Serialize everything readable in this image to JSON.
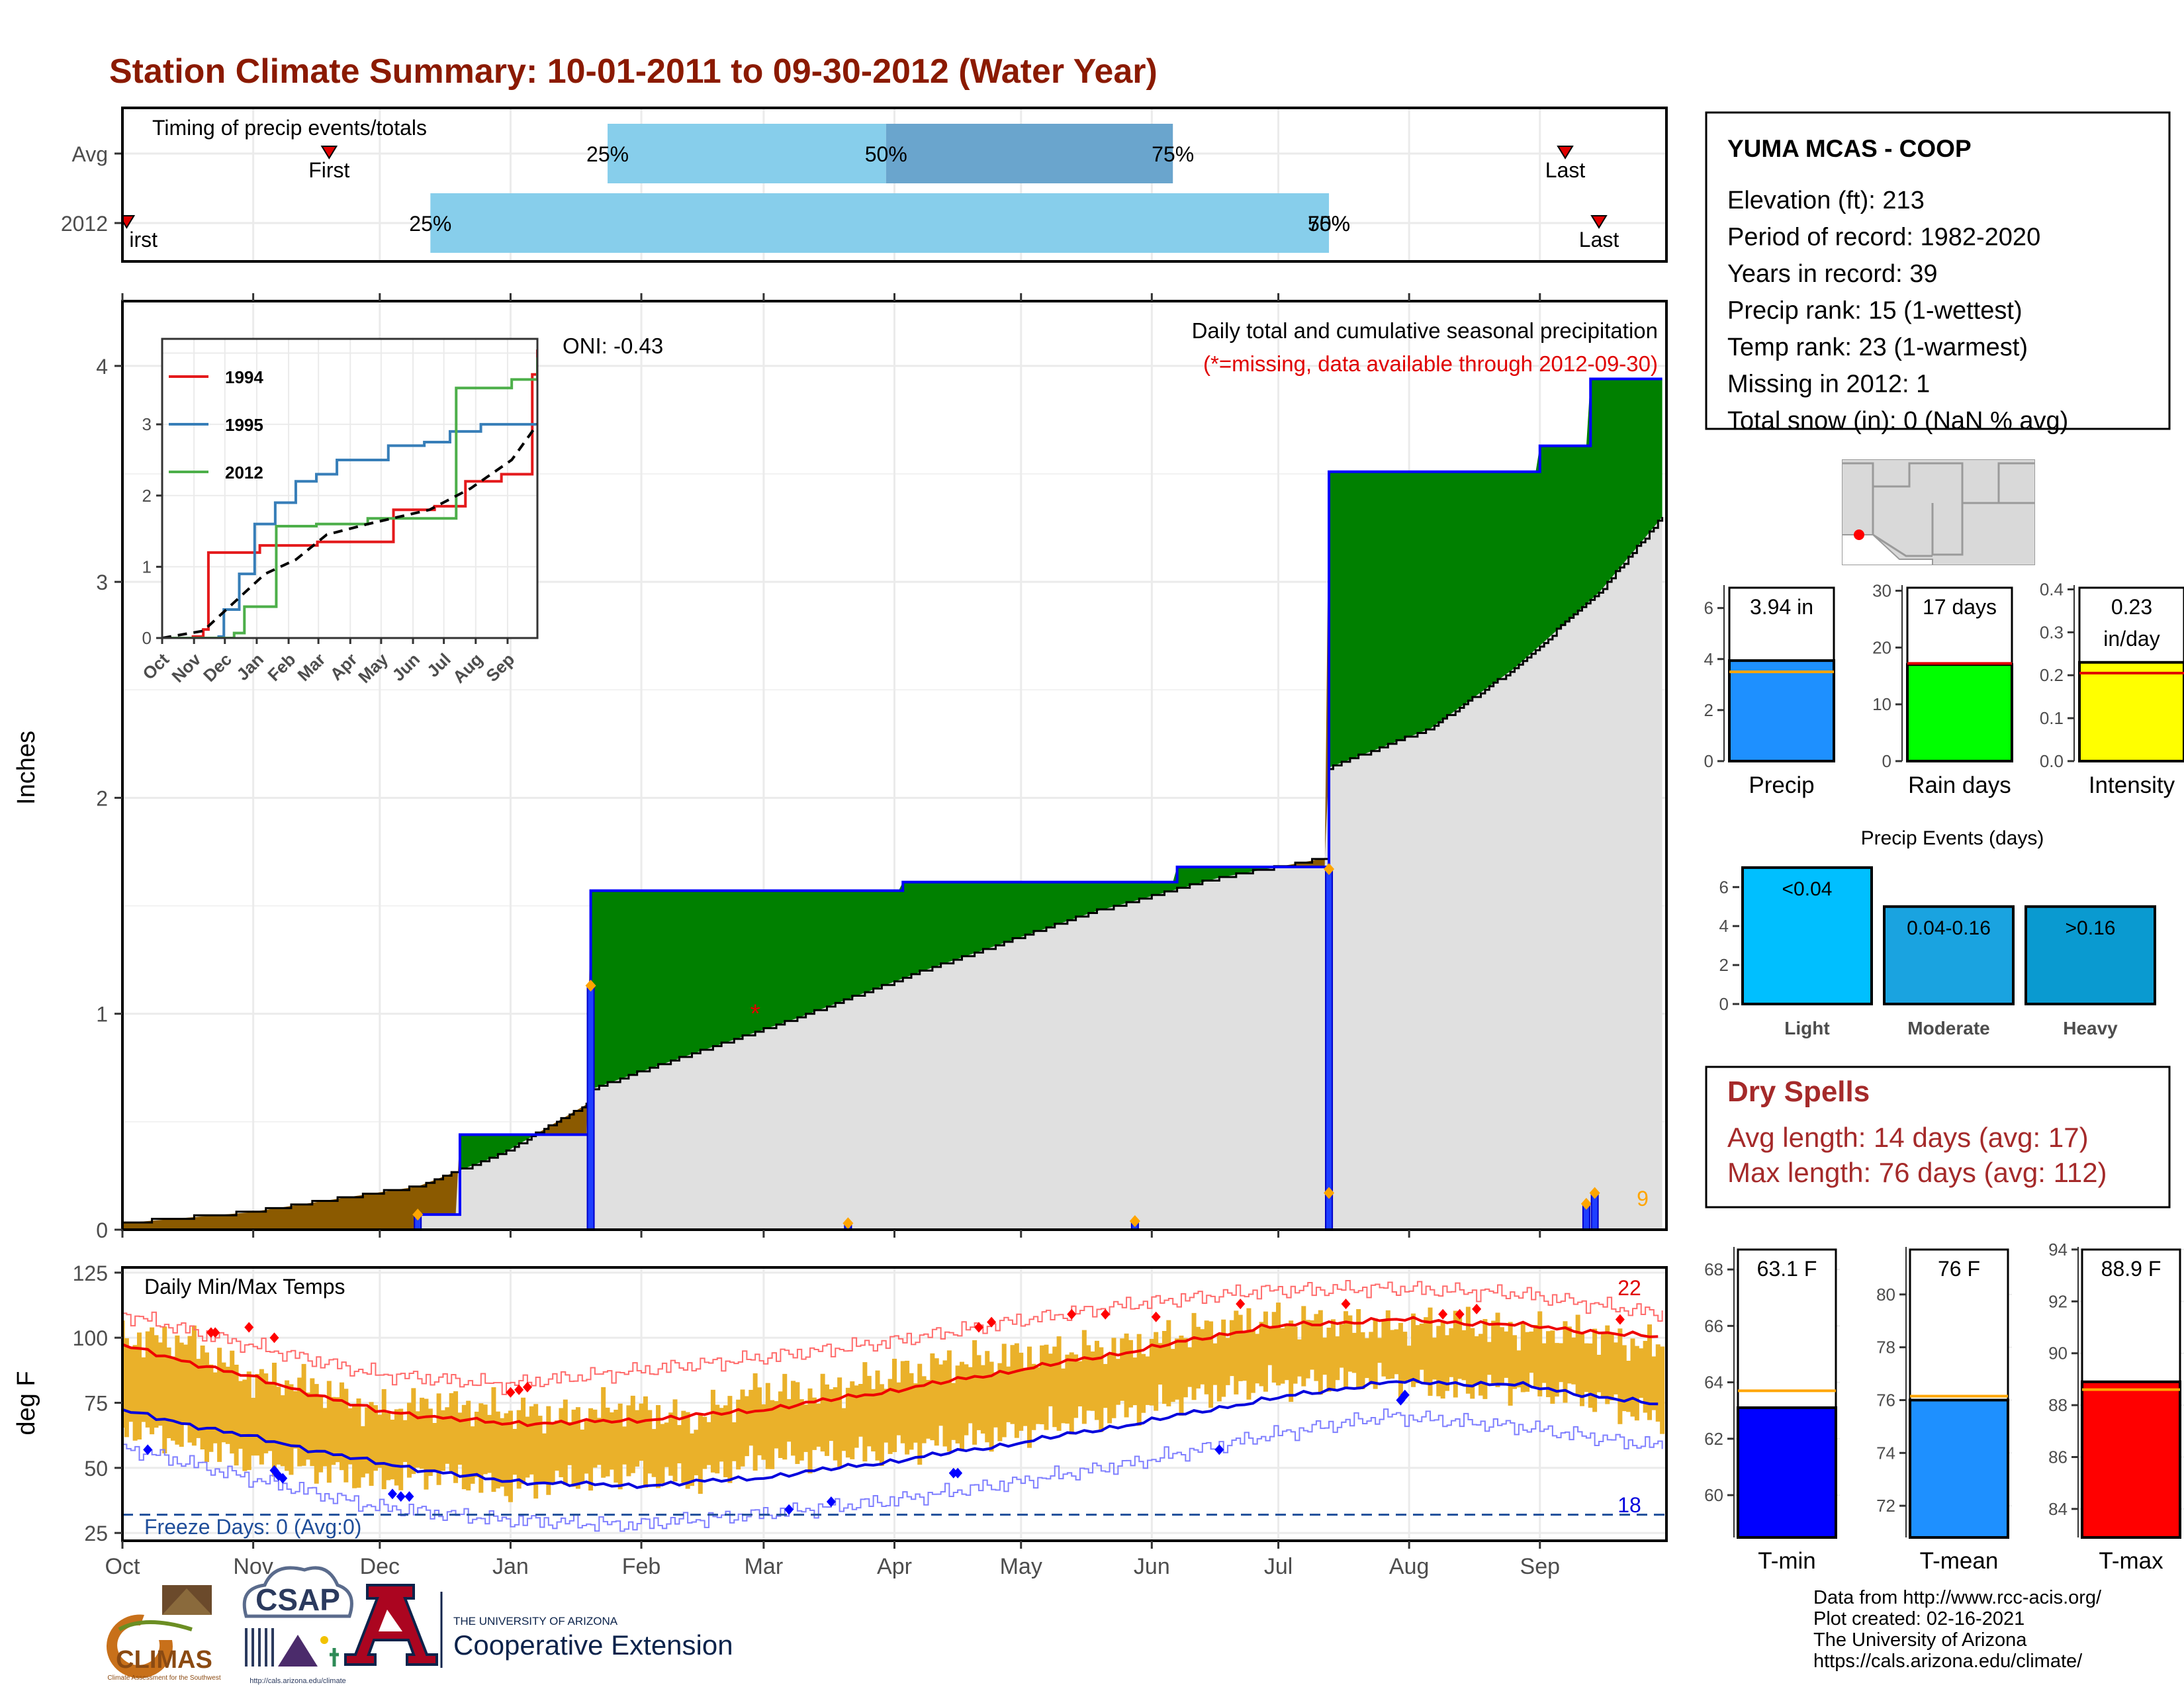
{
  "title": "Station Climate Summary: 10-01-2011 to 09-30-2012 (Water Year)",
  "timing": {
    "title": "Timing of precip events/totals",
    "rows": [
      "Avg",
      "2012"
    ],
    "avg": {
      "first": "Nov 19",
      "p25": "Jan 24",
      "p50": "Mar 30",
      "p75": "Jun 06",
      "last": "Sep 07"
    },
    "y2012": {
      "first": "Oct 02",
      "p25": "Dec 13",
      "p50": "Jul 13",
      "p75": "Jul 13",
      "last": "Sep 15"
    },
    "labels": {
      "first": "First",
      "first_cut": "irst",
      "last": "Last",
      "p25": "25%",
      "p50": "50%",
      "p75": "75%"
    }
  },
  "station": {
    "name": "YUMA MCAS - COOP",
    "lines": [
      "Elevation (ft): 213",
      "Period of record: 1982-2020",
      "Years in record: 39",
      "Precip rank: 15 (1-wettest)",
      "Temp rank: 23 (1-warmest)",
      "Missing in 2012: 1",
      "Total snow (in): 0 (NaN % avg)"
    ]
  },
  "months": [
    "Oct",
    "Nov",
    "Dec",
    "Jan",
    "Feb",
    "Mar",
    "Apr",
    "May",
    "Jun",
    "Jul",
    "Aug",
    "Sep"
  ],
  "precip_panel": {
    "ylabel": "Inches",
    "oni": "ONI: -0.43",
    "caption1": "Daily total and cumulative seasonal precipitation",
    "caption2": "(*=missing, data available through 2012-09-30)",
    "count_label": "9",
    "yticks": [
      "0",
      "1",
      "2",
      "3",
      "4"
    ],
    "missing_marker": "*"
  },
  "chart_data": [
    {
      "type": "area",
      "name": "cumulative-precip",
      "x_unit": "day of water year (Oct 1 = 0)",
      "ylabel": "Inches",
      "ylim": [
        0,
        4.3
      ],
      "observed_2012_cumulative": [
        [
          0,
          0
        ],
        [
          70,
          0.07
        ],
        [
          80,
          0.44
        ],
        [
          110,
          0.44
        ],
        [
          111,
          1.57
        ],
        [
          185,
          1.61
        ],
        [
          250,
          1.68
        ],
        [
          285,
          1.68
        ],
        [
          286,
          3.51
        ],
        [
          335,
          3.51
        ],
        [
          336,
          3.63
        ],
        [
          347,
          3.63
        ],
        [
          348,
          3.94
        ],
        [
          365,
          3.94
        ]
      ],
      "average_cumulative": [
        [
          0,
          0.03
        ],
        [
          30,
          0.08
        ],
        [
          60,
          0.17
        ],
        [
          70,
          0.2
        ],
        [
          90,
          0.35
        ],
        [
          110,
          0.58
        ],
        [
          111,
          0.65
        ],
        [
          130,
          0.78
        ],
        [
          160,
          0.98
        ],
        [
          190,
          1.2
        ],
        [
          230,
          1.47
        ],
        [
          260,
          1.63
        ],
        [
          285,
          1.72
        ],
        [
          286,
          2.14
        ],
        [
          310,
          2.32
        ],
        [
          330,
          2.6
        ],
        [
          350,
          2.95
        ],
        [
          365,
          3.3
        ]
      ],
      "daily_events": [
        {
          "x": 70,
          "y": 0.07
        },
        {
          "x": 111,
          "y": 1.13
        },
        {
          "x": 172,
          "y": 0.03
        },
        {
          "x": 240,
          "y": 0.04
        },
        {
          "x": 286,
          "y": 1.67
        },
        {
          "x": 286,
          "y": 0.17
        },
        {
          "x": 347,
          "y": 0.12
        },
        {
          "x": 349,
          "y": 0.17
        }
      ]
    },
    {
      "type": "line",
      "name": "inset-cumulative",
      "categories": [
        "Oct",
        "Nov",
        "Dec",
        "Jan",
        "Feb",
        "Mar",
        "Apr",
        "May",
        "Jun",
        "Jul",
        "Aug",
        "Sep"
      ],
      "ylim": [
        0,
        4.2
      ],
      "series": [
        {
          "name": "1994",
          "color": "#e41a1c",
          "points": [
            [
              0,
              0
            ],
            [
              30,
              0.02
            ],
            [
              40,
              0.12
            ],
            [
              45,
              1.2
            ],
            [
              90,
              1.2
            ],
            [
              95,
              1.3
            ],
            [
              150,
              1.3
            ],
            [
              151,
              1.35
            ],
            [
              215,
              1.35
            ],
            [
              225,
              1.8
            ],
            [
              265,
              1.85
            ],
            [
              295,
              2.2
            ],
            [
              330,
              2.3
            ],
            [
              350,
              2.3
            ],
            [
              360,
              3.7
            ],
            [
              365,
              4.05
            ]
          ]
        },
        {
          "name": "1995",
          "color": "#377eb8",
          "points": [
            [
              0,
              0
            ],
            [
              55,
              0.02
            ],
            [
              60,
              0.4
            ],
            [
              75,
              0.9
            ],
            [
              90,
              1.6
            ],
            [
              110,
              1.9
            ],
            [
              130,
              2.2
            ],
            [
              150,
              2.3
            ],
            [
              170,
              2.5
            ],
            [
              210,
              2.5
            ],
            [
              220,
              2.7
            ],
            [
              255,
              2.75
            ],
            [
              280,
              2.9
            ],
            [
              310,
              3.0
            ],
            [
              340,
              3.0
            ],
            [
              365,
              3.0
            ]
          ]
        },
        {
          "name": "2012",
          "color": "#4daf4a",
          "points": [
            [
              0,
              0
            ],
            [
              70,
              0.07
            ],
            [
              80,
              0.44
            ],
            [
              110,
              0.44
            ],
            [
              111,
              1.57
            ],
            [
              150,
              1.6
            ],
            [
              200,
              1.68
            ],
            [
              285,
              1.68
            ],
            [
              286,
              3.51
            ],
            [
              330,
              3.51
            ],
            [
              340,
              3.63
            ],
            [
              355,
              3.63
            ],
            [
              365,
              3.94
            ]
          ]
        },
        {
          "name": "Avg",
          "color": "#000000",
          "points": [
            [
              0,
              0
            ],
            [
              40,
              0.1
            ],
            [
              70,
              0.5
            ],
            [
              100,
              0.9
            ],
            [
              130,
              1.1
            ],
            [
              160,
              1.45
            ],
            [
              200,
              1.6
            ],
            [
              260,
              1.8
            ],
            [
              300,
              2.1
            ],
            [
              340,
              2.5
            ],
            [
              365,
              3.0
            ]
          ]
        }
      ]
    },
    {
      "type": "line",
      "name": "daily-temps",
      "ylabel": "deg F",
      "ylim": [
        22,
        127
      ],
      "categories": [
        "Oct",
        "Nov",
        "Dec",
        "Jan",
        "Feb",
        "Mar",
        "Apr",
        "May",
        "Jun",
        "Jul",
        "Aug",
        "Sep"
      ],
      "annotation": "Daily Min/Max Temps",
      "freeze_label": "Freeze Days: 0 (Avg:0)",
      "freeze_line": 32,
      "hot_count": "22",
      "cold_count": "18",
      "normal_max": [
        [
          0,
          97
        ],
        [
          30,
          85
        ],
        [
          60,
          72
        ],
        [
          90,
          67
        ],
        [
          120,
          68
        ],
        [
          150,
          72
        ],
        [
          180,
          79
        ],
        [
          210,
          87
        ],
        [
          240,
          95
        ],
        [
          270,
          104
        ],
        [
          300,
          107
        ],
        [
          330,
          105
        ],
        [
          365,
          100
        ]
      ],
      "normal_min": [
        [
          0,
          72
        ],
        [
          30,
          62
        ],
        [
          60,
          52
        ],
        [
          90,
          45
        ],
        [
          120,
          43
        ],
        [
          150,
          46
        ],
        [
          180,
          52
        ],
        [
          210,
          59
        ],
        [
          240,
          67
        ],
        [
          270,
          76
        ],
        [
          300,
          83
        ],
        [
          330,
          82
        ],
        [
          365,
          74
        ]
      ],
      "record_max": [
        [
          0,
          109
        ],
        [
          30,
          97
        ],
        [
          60,
          86
        ],
        [
          90,
          82
        ],
        [
          120,
          87
        ],
        [
          150,
          92
        ],
        [
          180,
          98
        ],
        [
          210,
          106
        ],
        [
          240,
          113
        ],
        [
          270,
          118
        ],
        [
          300,
          119
        ],
        [
          330,
          117
        ],
        [
          365,
          109
        ]
      ],
      "record_min": [
        [
          0,
          58
        ],
        [
          30,
          46
        ],
        [
          60,
          35
        ],
        [
          90,
          30
        ],
        [
          120,
          28
        ],
        [
          150,
          32
        ],
        [
          180,
          37
        ],
        [
          210,
          44
        ],
        [
          240,
          52
        ],
        [
          270,
          62
        ],
        [
          300,
          70
        ],
        [
          330,
          66
        ],
        [
          365,
          58
        ]
      ],
      "obs_max": [
        [
          0,
          100
        ],
        [
          15,
          99
        ],
        [
          30,
          85
        ],
        [
          45,
          82
        ],
        [
          60,
          72
        ],
        [
          75,
          75
        ],
        [
          90,
          72
        ],
        [
          105,
          70
        ],
        [
          120,
          74
        ],
        [
          135,
          68
        ],
        [
          150,
          80
        ],
        [
          165,
          79
        ],
        [
          180,
          85
        ],
        [
          195,
          90
        ],
        [
          210,
          93
        ],
        [
          225,
          95
        ],
        [
          240,
          97
        ],
        [
          255,
          103
        ],
        [
          270,
          107
        ],
        [
          285,
          106
        ],
        [
          300,
          104
        ],
        [
          315,
          106
        ],
        [
          330,
          103
        ],
        [
          345,
          102
        ],
        [
          365,
          96
        ]
      ],
      "obs_min": [
        [
          0,
          66
        ],
        [
          15,
          60
        ],
        [
          30,
          53
        ],
        [
          45,
          50
        ],
        [
          60,
          45
        ],
        [
          75,
          48
        ],
        [
          90,
          42
        ],
        [
          105,
          45
        ],
        [
          120,
          48
        ],
        [
          135,
          45
        ],
        [
          150,
          53
        ],
        [
          165,
          55
        ],
        [
          180,
          56
        ],
        [
          195,
          60
        ],
        [
          210,
          63
        ],
        [
          225,
          68
        ],
        [
          240,
          72
        ],
        [
          255,
          78
        ],
        [
          270,
          82
        ],
        [
          285,
          83
        ],
        [
          300,
          84
        ],
        [
          315,
          80
        ],
        [
          330,
          81
        ],
        [
          345,
          78
        ],
        [
          365,
          68
        ]
      ],
      "hot_days": [
        [
          21,
          102
        ],
        [
          22,
          102
        ],
        [
          30,
          104
        ],
        [
          36,
          100
        ],
        [
          92,
          79
        ],
        [
          94,
          80
        ],
        [
          96,
          81
        ],
        [
          203,
          104
        ],
        [
          206,
          106
        ],
        [
          225,
          109
        ],
        [
          233,
          109
        ],
        [
          245,
          108
        ],
        [
          265,
          113
        ],
        [
          290,
          113
        ],
        [
          313,
          109
        ],
        [
          317,
          109
        ],
        [
          321,
          111
        ],
        [
          355,
          107
        ]
      ],
      "cold_days": [
        [
          6,
          57
        ],
        [
          36,
          49
        ],
        [
          37,
          47
        ],
        [
          38,
          46
        ],
        [
          64,
          40
        ],
        [
          66,
          39
        ],
        [
          68,
          39
        ],
        [
          158,
          34
        ],
        [
          168,
          37
        ],
        [
          197,
          48
        ],
        [
          198,
          48
        ],
        [
          260,
          57
        ],
        [
          303,
          76
        ],
        [
          304,
          78
        ]
      ]
    },
    {
      "type": "bar",
      "name": "season-stats",
      "panels": [
        {
          "category": "Precip",
          "value": 3.94,
          "avg": 3.5,
          "label": "3.94 in",
          "ylim": [
            0,
            6.9
          ],
          "ticks": [
            "0",
            "2",
            "4",
            "6"
          ],
          "color": "#1e90ff"
        },
        {
          "category": "Rain days",
          "value": 17,
          "avg": 17.2,
          "label": "17 days",
          "ylim": [
            0,
            31
          ],
          "ticks": [
            "0",
            "10",
            "20",
            "30"
          ],
          "color": "#00ff00"
        },
        {
          "category": "Intensity",
          "value": 0.23,
          "avg": 0.205,
          "label": "0.23 in/day",
          "ylim": [
            0,
            0.41
          ],
          "ticks": [
            "0.0",
            "0.1",
            "0.2",
            "0.3",
            "0.4"
          ],
          "color": "#ffff00"
        }
      ]
    },
    {
      "type": "bar",
      "name": "precip-events",
      "title": "Precip Events (days)",
      "categories": [
        "Light",
        "Moderate",
        "Heavy"
      ],
      "bar_labels": [
        "<0.04",
        "0.04-0.16",
        ">0.16"
      ],
      "values": [
        7,
        5,
        5
      ],
      "ticks": [
        "0",
        "2",
        "4",
        "6"
      ],
      "ylim": [
        0,
        7.2
      ],
      "colors": [
        "#00bfff",
        "#1aa3e0",
        "#0a9ad0"
      ]
    },
    {
      "type": "bar",
      "name": "temp-stats",
      "panels": [
        {
          "category": "T-min",
          "value": 63.1,
          "avg": 63.7,
          "label": "63.1 F",
          "ylim": [
            58.5,
            68.8
          ],
          "ticks": [
            "60",
            "62",
            "64",
            "66",
            "68"
          ],
          "color": "#0000ff"
        },
        {
          "category": "T-mean",
          "value": 76,
          "avg": 76.15,
          "label": "76 F",
          "ylim": [
            70.8,
            81.8
          ],
          "ticks": [
            "72",
            "74",
            "76",
            "78",
            "80"
          ],
          "color": "#1e90ff"
        },
        {
          "category": "T-max",
          "value": 88.9,
          "avg": 88.6,
          "label": "88.9 F",
          "ylim": [
            82.9,
            94.1
          ],
          "ticks": [
            "84",
            "86",
            "88",
            "90",
            "92",
            "94"
          ],
          "color": "#ff0000"
        }
      ]
    }
  ],
  "dry_spells": {
    "title": "Dry Spells",
    "avg": "Avg length: 14 days (avg: 17)",
    "max": "Max length: 76 days (avg: 112)"
  },
  "credits": [
    "Data from http://www.rcc-acis.org/",
    "Plot created: 02-16-2021",
    "The University of Arizona",
    "https://cals.arizona.edu/climate/"
  ],
  "logos": {
    "climas": "CLIMAS",
    "climas_sub": "Climate Assessment for the Southwest",
    "csap": "CSAP",
    "csap_url": "http://cals.arizona.edu/climate",
    "ua_small": "THE UNIVERSITY OF ARIZONA",
    "ua_big": "Cooperative Extension"
  },
  "colors": {
    "above_avg": "#008000",
    "below_avg": "#8b5a00",
    "avg_fill": "#e0e0e0",
    "observed_line": "#0000ff",
    "event_marker": "#ffa500",
    "title": "#8b1a00",
    "quartile_light": "#87ceeb",
    "quartile_dark": "#6aa5cd",
    "dry_spells": "#a52a2a"
  }
}
